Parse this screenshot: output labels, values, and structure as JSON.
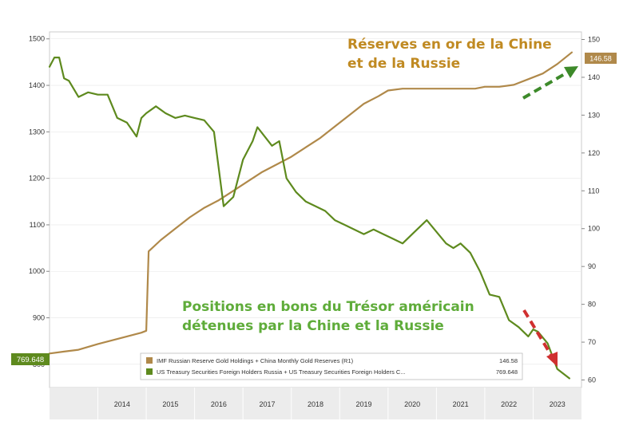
{
  "annotations": {
    "gold_title_line1": "Réserves en or de la Chine",
    "gold_title_line2": "et de la Russie",
    "treasury_title_line1": "Positions en bons du Trésor américain",
    "treasury_title_line2": "détenues par la Chine et la Russie"
  },
  "chart_data": {
    "type": "line",
    "x_ticks": [
      "2014",
      "2015",
      "2016",
      "2017",
      "2018",
      "2019",
      "2020",
      "2021",
      "2022",
      "2023"
    ],
    "y_left": {
      "ticks": [
        800,
        900,
        1000,
        1100,
        1200,
        1300,
        1400,
        1500
      ],
      "range": [
        750,
        1515
      ]
    },
    "y_right": {
      "ticks": [
        60,
        70,
        80,
        90,
        100,
        110,
        120,
        130,
        140,
        150
      ],
      "range": [
        58,
        152
      ]
    },
    "last_value_labels": {
      "gold": "146.58",
      "treasury": "769.648"
    },
    "series": [
      {
        "name": "IMF Russian Reserve Gold Holdings + China Monthly Gold Reserves (R1)",
        "legend_value": "146.58",
        "color": "#b0894a",
        "axis": "right",
        "x": [
          2013.0,
          2013.3,
          2013.6,
          2014.0,
          2014.3,
          2014.6,
          2014.9,
          2015.0,
          2015.05,
          2015.3,
          2015.6,
          2015.9,
          2016.2,
          2016.5,
          2016.8,
          2017.1,
          2017.4,
          2017.7,
          2018.0,
          2018.3,
          2018.6,
          2018.9,
          2019.2,
          2019.5,
          2019.8,
          2020.0,
          2020.3,
          2020.6,
          2020.9,
          2021.2,
          2021.5,
          2021.8,
          2022.0,
          2022.3,
          2022.6,
          2022.9,
          2023.2,
          2023.5,
          2023.8
        ],
        "y": [
          67,
          67.5,
          68,
          69.5,
          70.5,
          71.5,
          72.5,
          73,
          94,
          97,
          100,
          103,
          105.5,
          107.5,
          110,
          112.5,
          115,
          117,
          119,
          121.5,
          124,
          127,
          130,
          133,
          135,
          136.5,
          137,
          137,
          137,
          137,
          137,
          137,
          137.5,
          137.5,
          138,
          139.5,
          141,
          143.5,
          146.58
        ]
      },
      {
        "name": "US Treasury Securities Foreign Holders Russia + US Treasury Securities Foreign Holders C...",
        "legend_value": "769.648",
        "color": "#5e8a1e",
        "axis": "left",
        "x": [
          2013.0,
          2013.1,
          2013.2,
          2013.3,
          2013.4,
          2013.6,
          2013.8,
          2014.0,
          2014.2,
          2014.4,
          2014.6,
          2014.8,
          2014.9,
          2015.0,
          2015.2,
          2015.4,
          2015.6,
          2015.8,
          2016.0,
          2016.2,
          2016.4,
          2016.6,
          2016.8,
          2017.0,
          2017.2,
          2017.3,
          2017.45,
          2017.6,
          2017.75,
          2017.9,
          2018.1,
          2018.3,
          2018.5,
          2018.7,
          2018.9,
          2019.1,
          2019.3,
          2019.5,
          2019.7,
          2019.9,
          2020.1,
          2020.3,
          2020.5,
          2020.7,
          2020.8,
          2021.0,
          2021.2,
          2021.35,
          2021.5,
          2021.7,
          2021.9,
          2022.1,
          2022.3,
          2022.5,
          2022.7,
          2022.9,
          2023.0,
          2023.1,
          2023.3,
          2023.5,
          2023.75
        ],
        "y": [
          1440,
          1460,
          1460,
          1415,
          1410,
          1375,
          1385,
          1380,
          1380,
          1330,
          1320,
          1290,
          1330,
          1340,
          1355,
          1340,
          1330,
          1335,
          1330,
          1325,
          1300,
          1140,
          1160,
          1240,
          1280,
          1310,
          1290,
          1270,
          1280,
          1200,
          1170,
          1150,
          1140,
          1130,
          1110,
          1100,
          1090,
          1080,
          1090,
          1080,
          1070,
          1060,
          1080,
          1100,
          1110,
          1085,
          1060,
          1050,
          1060,
          1040,
          1000,
          950,
          945,
          895,
          880,
          860,
          875,
          870,
          845,
          790,
          769.648
        ]
      }
    ]
  }
}
